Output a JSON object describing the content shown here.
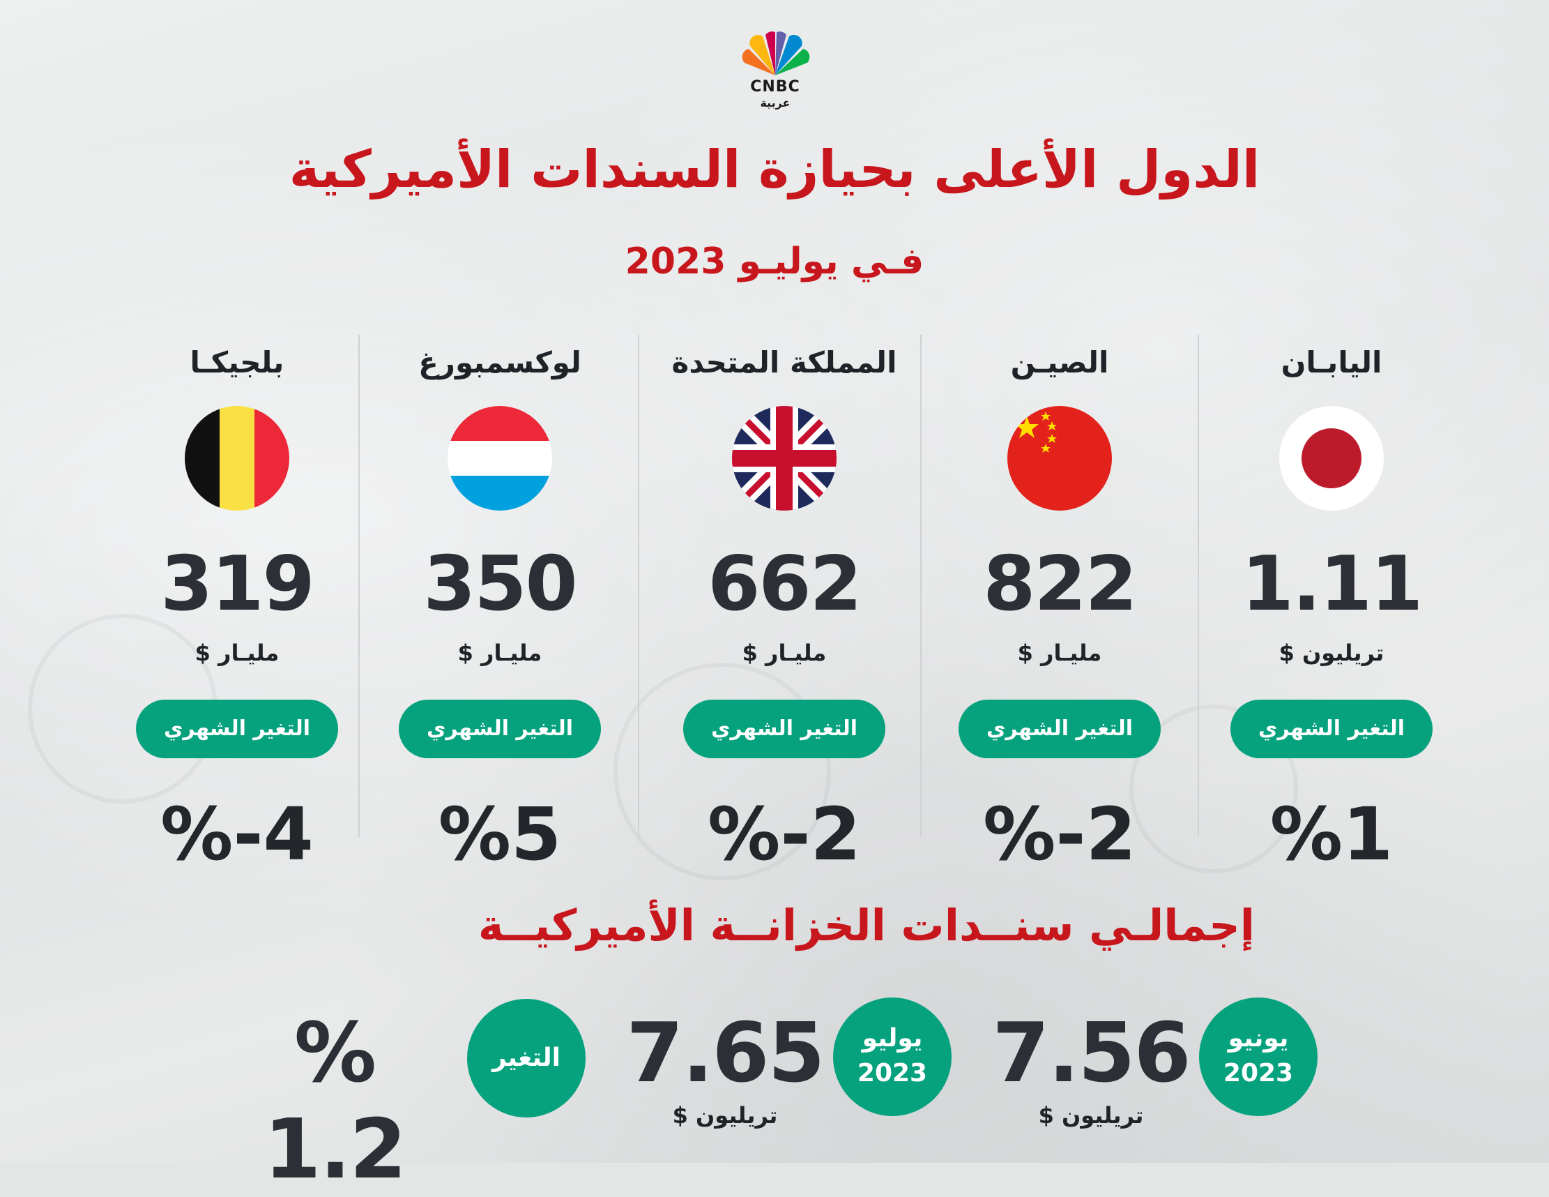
{
  "brand": {
    "name": "CNBC",
    "sub": "عربية"
  },
  "title": "الدول الأعلى بحيازة السندات الأميركية",
  "subtitle": "فـي يوليـو 2023",
  "countries": [
    {
      "name": "اليابـان",
      "value": "1.11",
      "unit": "تريليون $",
      "badge": "التغير الشهري",
      "change": "%1"
    },
    {
      "name": "الصيـن",
      "value": "822",
      "unit": "مليـار $",
      "badge": "التغير الشهري",
      "change": "%-2"
    },
    {
      "name": "المملكة المتحدة",
      "value": "662",
      "unit": "مليـار $",
      "badge": "التغير الشهري",
      "change": "%-2"
    },
    {
      "name": "لوكسمبورغ",
      "value": "350",
      "unit": "مليـار $",
      "badge": "التغير الشهري",
      "change": "%5"
    },
    {
      "name": "بلجيكـا",
      "value": "319",
      "unit": "مليـار $",
      "badge": "التغير الشهري",
      "change": "%-4"
    }
  ],
  "total": {
    "title": "إجمالـي سنــدات الخزانــة الأميركيــة",
    "june": {
      "month": "يونيو",
      "year": "2023",
      "value": "7.56",
      "unit": "تريليون $"
    },
    "july": {
      "month": "يوليو",
      "year": "2023",
      "value": "7.65",
      "unit": "تريليون $"
    },
    "change_label": "التغير",
    "change_value": "% 1.2"
  },
  "colors": {
    "accent_red": "#c8161d",
    "accent_green": "#05a27d",
    "text_dark": "#2c2f35"
  }
}
